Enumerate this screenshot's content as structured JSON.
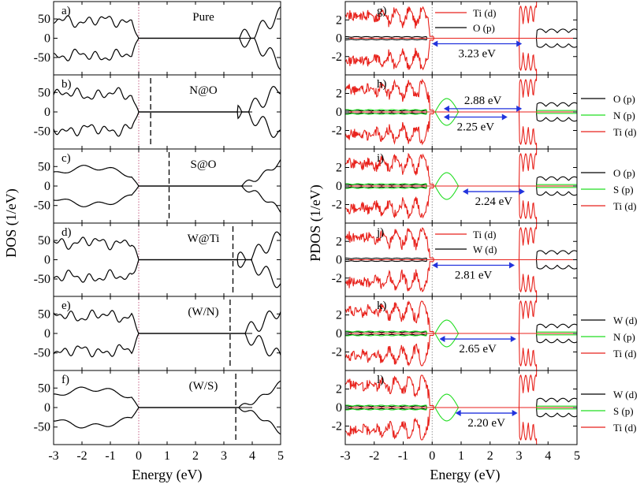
{
  "figure": {
    "left_ylabel": "DOS (1/eV)",
    "right_ylabel": "PDOS (1/eV)",
    "left_xlabel": "Energy (eV)",
    "right_xlabel": "Energy (eV)"
  },
  "chart_data": [
    {
      "type": "line",
      "panel": "a)",
      "title": "Pure",
      "xlim": [
        -3,
        5
      ],
      "ylim": [
        -95,
        95
      ],
      "yticks": [
        50,
        0,
        -50
      ],
      "fermi_level": 0,
      "marker_line": null,
      "series": [
        {
          "name": "DOS",
          "color": "#000000"
        }
      ]
    },
    {
      "type": "line",
      "panel": "b)",
      "title": "N@O",
      "xlim": [
        -3,
        5
      ],
      "ylim": [
        -95,
        95
      ],
      "yticks": [
        50,
        0,
        -50
      ],
      "fermi_level": 0,
      "marker_line": 0.42,
      "series": [
        {
          "name": "DOS",
          "color": "#000000"
        }
      ]
    },
    {
      "type": "line",
      "panel": "c)",
      "title": "S@O",
      "xlim": [
        -3,
        5
      ],
      "ylim": [
        -95,
        95
      ],
      "yticks": [
        50,
        0,
        -50
      ],
      "fermi_level": 0,
      "marker_line": 1.07,
      "series": [
        {
          "name": "DOS",
          "color": "#000000"
        }
      ]
    },
    {
      "type": "line",
      "panel": "d)",
      "title": "W@Ti",
      "xlim": [
        -3,
        5
      ],
      "ylim": [
        -95,
        95
      ],
      "yticks": [
        50,
        0,
        -50
      ],
      "fermi_level": 0,
      "marker_line": 3.32,
      "series": [
        {
          "name": "DOS",
          "color": "#000000"
        }
      ]
    },
    {
      "type": "line",
      "panel": "e)",
      "title": "(W/N)",
      "xlim": [
        -3,
        5
      ],
      "ylim": [
        -95,
        95
      ],
      "yticks": [
        50,
        0,
        -50
      ],
      "fermi_level": 0,
      "marker_line": 3.22,
      "series": [
        {
          "name": "DOS",
          "color": "#000000"
        }
      ]
    },
    {
      "type": "line",
      "panel": "f)",
      "title": "(W/S)",
      "xlim": [
        -3,
        5
      ],
      "ylim": [
        -95,
        95
      ],
      "yticks": [
        50,
        0,
        -50
      ],
      "fermi_level": 0,
      "marker_line": 3.42,
      "series": [
        {
          "name": "DOS",
          "color": "#000000"
        }
      ]
    },
    {
      "type": "line",
      "panel": "g)",
      "xlim": [
        -3,
        5
      ],
      "ylim": [
        -4,
        4
      ],
      "yticks": [
        2,
        0,
        -2
      ],
      "fermi_level": 0,
      "legend": {
        "position": "top-center",
        "entries": [
          "Ti (d)",
          "O  (p)"
        ]
      },
      "series": [
        {
          "name": "Ti (d)",
          "color": "#e8221c"
        },
        {
          "name": "O  (p)",
          "color": "#000000"
        }
      ],
      "gaps": [
        {
          "from": 0.0,
          "to": 3.1,
          "label": "3.23 eV"
        }
      ]
    },
    {
      "type": "line",
      "panel": "h)",
      "xlim": [
        -3,
        5
      ],
      "ylim": [
        -4,
        4
      ],
      "yticks": [
        2,
        0,
        -2
      ],
      "fermi_level": 0,
      "legend": {
        "position": "outside-right",
        "entries": [
          "O (p)",
          "N (p)",
          "Ti (d)"
        ]
      },
      "series": [
        {
          "name": "O (p)",
          "color": "#000000"
        },
        {
          "name": "N (p)",
          "color": "#22dd22"
        },
        {
          "name": "Ti (d)",
          "color": "#e8221c"
        }
      ],
      "gaps": [
        {
          "from": 0.4,
          "to": 3.1,
          "label": "2.88 eV"
        },
        {
          "from": 0.4,
          "to": 2.6,
          "label": "2.25 eV"
        }
      ]
    },
    {
      "type": "line",
      "panel": "i)",
      "xlim": [
        -3,
        5
      ],
      "ylim": [
        -4,
        4
      ],
      "yticks": [
        2,
        0,
        -2
      ],
      "fermi_level": 0,
      "legend": {
        "position": "outside-right",
        "entries": [
          "O (p)",
          "S (p)",
          "Ti (d)"
        ]
      },
      "series": [
        {
          "name": "O (p)",
          "color": "#000000"
        },
        {
          "name": "S (p)",
          "color": "#22dd22"
        },
        {
          "name": "Ti (d)",
          "color": "#e8221c"
        }
      ],
      "gaps": [
        {
          "from": 1.05,
          "to": 3.2,
          "label": "2.24 eV"
        }
      ]
    },
    {
      "type": "line",
      "panel": "j)",
      "xlim": [
        -3,
        5
      ],
      "ylim": [
        -4,
        4
      ],
      "yticks": [
        2,
        0,
        -2
      ],
      "fermi_level": 0,
      "legend": {
        "position": "top-center",
        "entries": [
          "Ti (d)",
          "W  (d)"
        ]
      },
      "series": [
        {
          "name": "Ti (d)",
          "color": "#e8221c"
        },
        {
          "name": "W  (d)",
          "color": "#000000"
        }
      ],
      "gaps": [
        {
          "from": 0.0,
          "to": 2.85,
          "label": "2.81 eV"
        }
      ]
    },
    {
      "type": "line",
      "panel": "k)",
      "xlim": [
        -3,
        5
      ],
      "ylim": [
        -4,
        4
      ],
      "yticks": [
        2,
        0,
        -2
      ],
      "fermi_level": 0,
      "legend": {
        "position": "outside-right",
        "entries": [
          "W (d)",
          "N (p)",
          "Ti (d)"
        ]
      },
      "series": [
        {
          "name": "W (d)",
          "color": "#000000"
        },
        {
          "name": "N (p)",
          "color": "#22dd22"
        },
        {
          "name": "Ti (d)",
          "color": "#e8221c"
        }
      ],
      "gaps": [
        {
          "from": 0.25,
          "to": 2.9,
          "label": "2.65 eV"
        }
      ]
    },
    {
      "type": "line",
      "panel": "l)",
      "xlim": [
        -3,
        5
      ],
      "ylim": [
        -4,
        4
      ],
      "yticks": [
        2,
        0,
        -2
      ],
      "fermi_level": 0,
      "legend": {
        "position": "outside-right",
        "entries": [
          "W (d)",
          "S (p)",
          "Ti (d)"
        ]
      },
      "series": [
        {
          "name": "W (d)",
          "color": "#000000"
        },
        {
          "name": "S (p)",
          "color": "#22dd22"
        },
        {
          "name": "Ti (d)",
          "color": "#e8221c"
        }
      ],
      "gaps": [
        {
          "from": 0.8,
          "to": 2.95,
          "label": "2.20 eV"
        }
      ]
    }
  ],
  "xticks": [
    "-3",
    "-2",
    "-1",
    "0",
    "1",
    "2",
    "3",
    "4",
    "5"
  ],
  "xtick_values": [
    -3,
    -2,
    -1,
    0,
    1,
    2,
    3,
    4,
    5
  ]
}
